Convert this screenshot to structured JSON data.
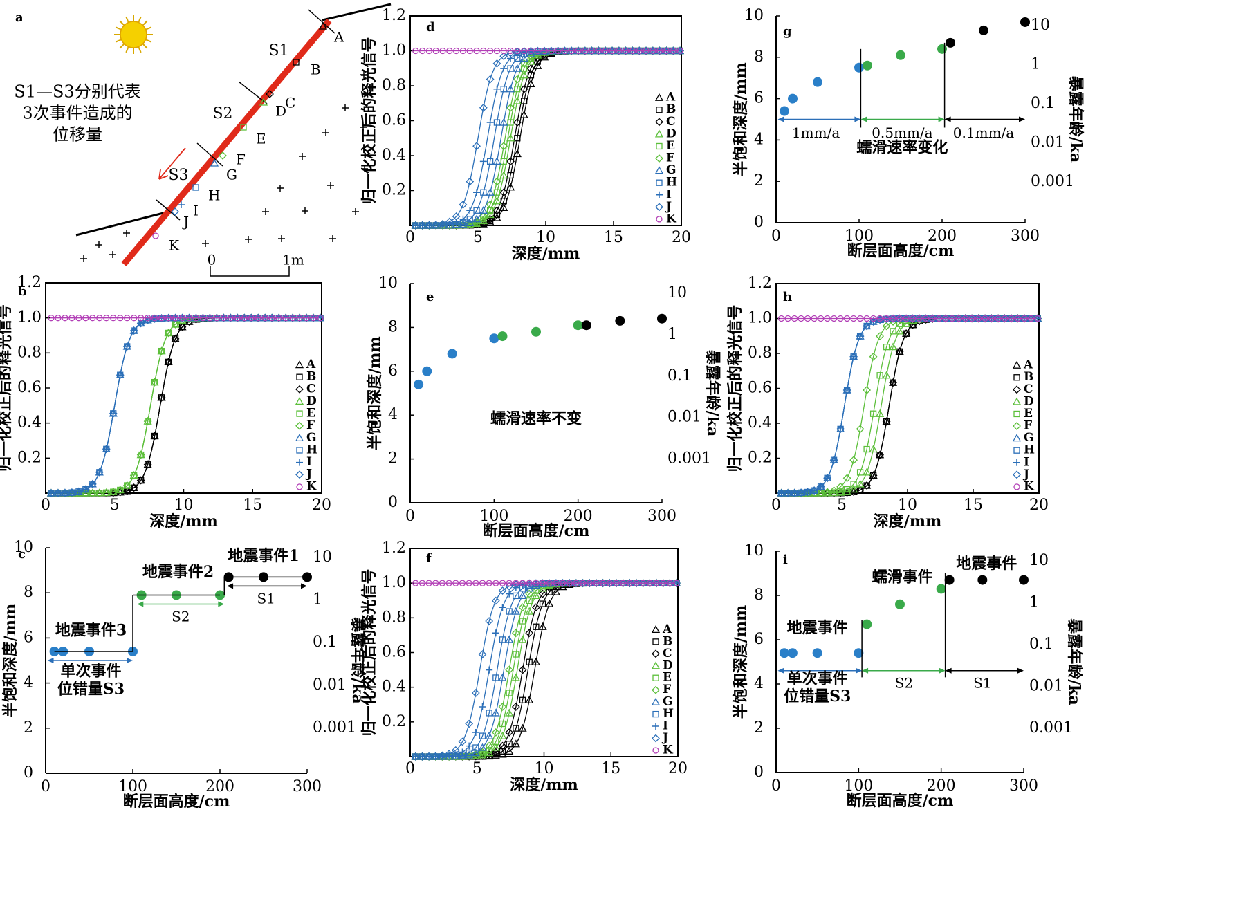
{
  "colors": {
    "black": "#000000",
    "green": "#5cbf3a",
    "blue": "#2b6fb8",
    "purple": "#b23fb6",
    "green_dot": "#3aaa4a",
    "blue_dot": "#2a7fc8",
    "red": "#e02a1a",
    "sun": "#f5d000"
  },
  "panel_a": {
    "letter": "a",
    "caption": [
      "S1—S3分别代表",
      "3次事件造成的",
      "位移量"
    ],
    "segments": [
      "S1",
      "S2",
      "S3"
    ],
    "points": [
      "A",
      "B",
      "C",
      "D",
      "E",
      "F",
      "G",
      "H",
      "I",
      "J",
      "K"
    ],
    "scale": [
      "0",
      "1m"
    ]
  },
  "chart_data": [
    {
      "panel": "b",
      "type": "line",
      "xlabel": "深度/mm",
      "ylabel": "归一化校正后的释光信号",
      "xlim": [
        0,
        20
      ],
      "ylim": [
        0,
        1.2
      ],
      "xticks": [
        0,
        5,
        10,
        15,
        20
      ],
      "yticks": [
        0.2,
        0.4,
        0.6,
        0.8,
        1.0,
        1.2
      ],
      "legend": [
        "A",
        "B",
        "C",
        "D",
        "E",
        "F",
        "G",
        "H",
        "I",
        "J",
        "K"
      ],
      "legend_position": "right",
      "series": [
        {
          "name": "A",
          "group": "black",
          "midpoint": 8.3
        },
        {
          "name": "B",
          "group": "black",
          "midpoint": 8.3
        },
        {
          "name": "C",
          "group": "black",
          "midpoint": 8.3
        },
        {
          "name": "D",
          "group": "green",
          "midpoint": 7.6
        },
        {
          "name": "E",
          "group": "green",
          "midpoint": 7.6
        },
        {
          "name": "F",
          "group": "green",
          "midpoint": 7.6
        },
        {
          "name": "G",
          "group": "blue",
          "midpoint": 5.0
        },
        {
          "name": "H",
          "group": "blue",
          "midpoint": 5.0
        },
        {
          "name": "I",
          "group": "blue",
          "midpoint": 5.0
        },
        {
          "name": "J",
          "group": "blue",
          "midpoint": 5.0
        },
        {
          "name": "K",
          "group": "purple",
          "value": 1.0
        }
      ]
    },
    {
      "panel": "c",
      "type": "scatter",
      "xlabel": "断层面高度/cm",
      "ylabel": "半饱和深度/mm",
      "y2label": "暴露年龄/ka",
      "xlim": [
        0,
        300
      ],
      "ylim": [
        0,
        10
      ],
      "xticks": [
        0,
        100,
        200,
        300
      ],
      "yticks": [
        0,
        2,
        4,
        6,
        8,
        10
      ],
      "y2ticks": [
        "10",
        "1",
        "0.1",
        "0.01",
        "0.001"
      ],
      "points": [
        {
          "x": 10,
          "y": 5.4,
          "group": "blue"
        },
        {
          "x": 20,
          "y": 5.4,
          "group": "blue"
        },
        {
          "x": 50,
          "y": 5.4,
          "group": "blue"
        },
        {
          "x": 100,
          "y": 5.4,
          "group": "blue"
        },
        {
          "x": 110,
          "y": 7.9,
          "group": "green"
        },
        {
          "x": 150,
          "y": 7.9,
          "group": "green"
        },
        {
          "x": 200,
          "y": 7.9,
          "group": "green"
        },
        {
          "x": 210,
          "y": 8.7,
          "group": "black"
        },
        {
          "x": 250,
          "y": 8.7,
          "group": "black"
        },
        {
          "x": 300,
          "y": 8.7,
          "group": "black"
        }
      ],
      "annotations": [
        "地震事件3",
        "地震事件2",
        "地震事件1",
        "单次事件",
        "位错量S3",
        "S2",
        "S1"
      ]
    },
    {
      "panel": "d",
      "type": "line",
      "xlabel": "深度/mm",
      "ylabel": "归一化校正后的释光信号",
      "xlim": [
        0,
        20
      ],
      "ylim": [
        0,
        1.2
      ],
      "xticks": [
        0,
        5,
        10,
        15,
        20
      ],
      "yticks": [
        0.2,
        0.4,
        0.6,
        0.8,
        1.0,
        1.2
      ],
      "legend": [
        "A",
        "B",
        "C",
        "D",
        "E",
        "F",
        "G",
        "H",
        "I",
        "J",
        "K"
      ],
      "legend_position": "right",
      "series": [
        {
          "name": "A",
          "group": "black",
          "midpoint": 8.1
        },
        {
          "name": "B",
          "group": "black",
          "midpoint": 7.9
        },
        {
          "name": "C",
          "group": "black",
          "midpoint": 7.7
        },
        {
          "name": "D",
          "group": "green",
          "midpoint": 7.4
        },
        {
          "name": "E",
          "group": "green",
          "midpoint": 7.2
        },
        {
          "name": "F",
          "group": "green",
          "midpoint": 7.0
        },
        {
          "name": "G",
          "group": "blue",
          "midpoint": 6.7
        },
        {
          "name": "H",
          "group": "blue",
          "midpoint": 6.2
        },
        {
          "name": "I",
          "group": "blue",
          "midpoint": 5.7
        },
        {
          "name": "J",
          "group": "blue",
          "midpoint": 5.0
        },
        {
          "name": "K",
          "group": "purple",
          "value": 1.0
        }
      ]
    },
    {
      "panel": "e",
      "type": "scatter",
      "xlabel": "断层面高度/cm",
      "ylabel": "半饱和深度/mm",
      "y2label": "暴露年龄/ka",
      "xlim": [
        0,
        300
      ],
      "ylim": [
        0,
        10
      ],
      "xticks": [
        0,
        100,
        200,
        300
      ],
      "yticks": [
        0,
        2,
        4,
        6,
        8,
        10
      ],
      "y2ticks": [
        "10",
        "1",
        "0.1",
        "0.01",
        "0.001"
      ],
      "points": [
        {
          "x": 10,
          "y": 5.4,
          "group": "blue"
        },
        {
          "x": 20,
          "y": 6.0,
          "group": "blue"
        },
        {
          "x": 50,
          "y": 6.8,
          "group": "blue"
        },
        {
          "x": 100,
          "y": 7.5,
          "group": "blue"
        },
        {
          "x": 110,
          "y": 7.6,
          "group": "green"
        },
        {
          "x": 150,
          "y": 7.8,
          "group": "green"
        },
        {
          "x": 200,
          "y": 8.1,
          "group": "green"
        },
        {
          "x": 210,
          "y": 8.1,
          "group": "black"
        },
        {
          "x": 250,
          "y": 8.3,
          "group": "black"
        },
        {
          "x": 300,
          "y": 8.4,
          "group": "black"
        }
      ],
      "annotations": [
        "蠕滑速率不变"
      ]
    },
    {
      "panel": "f",
      "type": "line",
      "xlabel": "深度/mm",
      "ylabel": "归一化校正后的释光信号",
      "xlim": [
        0,
        20
      ],
      "ylim": [
        0,
        1.2
      ],
      "xticks": [
        0,
        5,
        10,
        15,
        20
      ],
      "yticks": [
        0.2,
        0.4,
        0.6,
        0.8,
        1.0,
        1.2
      ],
      "legend": [
        "A",
        "B",
        "C",
        "D",
        "E",
        "F",
        "G",
        "H",
        "I",
        "J",
        "K"
      ],
      "legend_position": "right",
      "series": [
        {
          "name": "A",
          "group": "black",
          "midpoint": 9.3
        },
        {
          "name": "B",
          "group": "black",
          "midpoint": 8.8
        },
        {
          "name": "C",
          "group": "black",
          "midpoint": 8.4
        },
        {
          "name": "D",
          "group": "green",
          "midpoint": 8.0
        },
        {
          "name": "E",
          "group": "green",
          "midpoint": 7.7
        },
        {
          "name": "F",
          "group": "green",
          "midpoint": 7.4
        },
        {
          "name": "G",
          "group": "blue",
          "midpoint": 7.0
        },
        {
          "name": "H",
          "group": "blue",
          "midpoint": 6.5
        },
        {
          "name": "I",
          "group": "blue",
          "midpoint": 5.9
        },
        {
          "name": "J",
          "group": "blue",
          "midpoint": 5.2
        },
        {
          "name": "K",
          "group": "purple",
          "value": 1.0
        }
      ]
    },
    {
      "panel": "g",
      "type": "scatter",
      "xlabel": "断层面高度/cm",
      "ylabel": "半饱和深度/mm",
      "y2label": "暴露年龄/ka",
      "xlim": [
        0,
        300
      ],
      "ylim": [
        0,
        10
      ],
      "xticks": [
        0,
        100,
        200,
        300
      ],
      "yticks": [
        0,
        2,
        4,
        6,
        8,
        10
      ],
      "y2ticks": [
        "10",
        "1",
        "0.1",
        "0.01",
        "0.001"
      ],
      "points": [
        {
          "x": 10,
          "y": 5.4,
          "group": "blue"
        },
        {
          "x": 20,
          "y": 6.0,
          "group": "blue"
        },
        {
          "x": 50,
          "y": 6.8,
          "group": "blue"
        },
        {
          "x": 100,
          "y": 7.5,
          "group": "blue"
        },
        {
          "x": 110,
          "y": 7.6,
          "group": "green"
        },
        {
          "x": 150,
          "y": 8.1,
          "group": "green"
        },
        {
          "x": 200,
          "y": 8.4,
          "group": "green"
        },
        {
          "x": 210,
          "y": 8.7,
          "group": "black"
        },
        {
          "x": 250,
          "y": 9.3,
          "group": "black"
        },
        {
          "x": 300,
          "y": 9.7,
          "group": "black"
        }
      ],
      "annotations": [
        "1mm/a",
        "0.5mm/a",
        "0.1mm/a",
        "蠕滑速率变化"
      ]
    },
    {
      "panel": "h",
      "type": "line",
      "xlabel": "深度/mm",
      "ylabel": "归一化校正后的释光信号",
      "xlim": [
        0,
        20
      ],
      "ylim": [
        0,
        1.2
      ],
      "xticks": [
        0,
        5,
        10,
        15,
        20
      ],
      "yticks": [
        0.2,
        0.4,
        0.6,
        0.8,
        1.0,
        1.2
      ],
      "legend": [
        "A",
        "B",
        "C",
        "D",
        "E",
        "F",
        "G",
        "H",
        "I",
        "J",
        "K"
      ],
      "legend_position": "right",
      "series": [
        {
          "name": "A",
          "group": "black",
          "midpoint": 8.6
        },
        {
          "name": "B",
          "group": "black",
          "midpoint": 8.6
        },
        {
          "name": "C",
          "group": "black",
          "midpoint": 8.6
        },
        {
          "name": "D",
          "group": "green",
          "midpoint": 8.0
        },
        {
          "name": "E",
          "group": "green",
          "midpoint": 7.5
        },
        {
          "name": "F",
          "group": "green",
          "midpoint": 6.7
        },
        {
          "name": "G",
          "group": "blue",
          "midpoint": 5.2
        },
        {
          "name": "H",
          "group": "blue",
          "midpoint": 5.2
        },
        {
          "name": "I",
          "group": "blue",
          "midpoint": 5.2
        },
        {
          "name": "J",
          "group": "blue",
          "midpoint": 5.2
        },
        {
          "name": "K",
          "group": "purple",
          "value": 1.0
        }
      ]
    },
    {
      "panel": "i",
      "type": "scatter",
      "xlabel": "断层面高度/cm",
      "ylabel": "半饱和深度/mm",
      "y2label": "暴露年龄/ka",
      "xlim": [
        0,
        300
      ],
      "ylim": [
        0,
        10
      ],
      "xticks": [
        0,
        100,
        200,
        300
      ],
      "yticks": [
        0,
        2,
        4,
        6,
        8,
        10
      ],
      "y2ticks": [
        "10",
        "1",
        "0.1",
        "0.01",
        "0.001"
      ],
      "points": [
        {
          "x": 10,
          "y": 5.4,
          "group": "blue"
        },
        {
          "x": 20,
          "y": 5.4,
          "group": "blue"
        },
        {
          "x": 50,
          "y": 5.4,
          "group": "blue"
        },
        {
          "x": 100,
          "y": 5.4,
          "group": "blue"
        },
        {
          "x": 110,
          "y": 6.7,
          "group": "green"
        },
        {
          "x": 150,
          "y": 7.6,
          "group": "green"
        },
        {
          "x": 200,
          "y": 8.3,
          "group": "green"
        },
        {
          "x": 210,
          "y": 8.7,
          "group": "black"
        },
        {
          "x": 250,
          "y": 8.7,
          "group": "black"
        },
        {
          "x": 300,
          "y": 8.7,
          "group": "black"
        }
      ],
      "annotations": [
        "地震事件",
        "蠕滑事件",
        "地震事件",
        "单次事件",
        "位错量S3",
        "S2",
        "S1"
      ]
    }
  ]
}
